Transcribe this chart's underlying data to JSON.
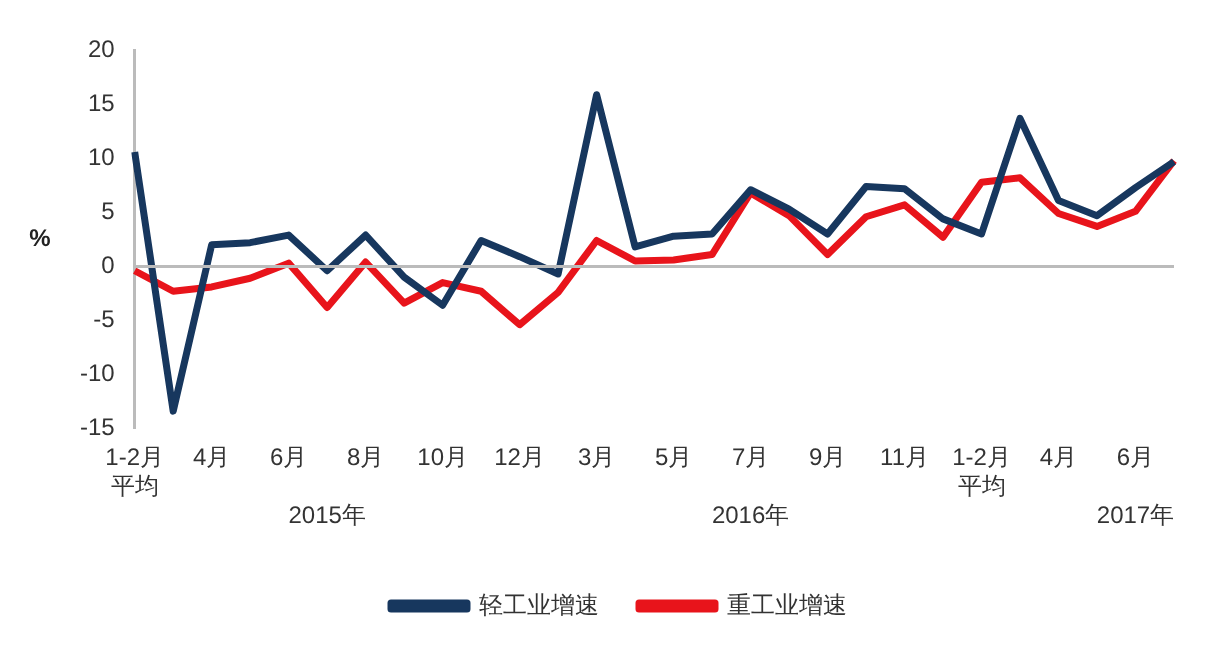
{
  "chart_data": {
    "type": "line",
    "ylabel": "%",
    "categories": [
      "1-2月平均",
      null,
      "4月",
      null,
      "6月",
      null,
      "8月",
      null,
      "10月",
      null,
      "12月",
      null,
      "3月",
      null,
      "5月",
      null,
      "7月",
      null,
      "9月",
      null,
      "11月",
      null,
      "1-2月平均",
      null,
      "4月",
      null,
      "6月",
      null
    ],
    "annotations": [
      "2015年",
      "2016年",
      "2017年"
    ],
    "ref_lines": [
      {
        "axis": "y",
        "value": 0,
        "color": "#bbbbbb"
      }
    ],
    "series": [
      {
        "name": "轻工业增速",
        "color": "#17375e",
        "values": [
          10.6,
          -13.4,
          2.0,
          2.2,
          2.9,
          -0.4,
          2.9,
          -1.0,
          -3.6,
          2.4,
          0.9,
          -0.7,
          15.9,
          1.8,
          2.8,
          3.0,
          7.1,
          5.3,
          3.0,
          7.4,
          7.2,
          4.4,
          3.0,
          13.7,
          6.1,
          4.7,
          7.3,
          9.7
        ]
      },
      {
        "name": "重工业增速",
        "color": "#e8141b",
        "values": [
          -0.4,
          -2.3,
          -1.9,
          -1.1,
          0.3,
          -3.8,
          0.4,
          -3.4,
          -1.5,
          -2.3,
          -5.4,
          -2.4,
          2.4,
          0.5,
          0.6,
          1.1,
          6.8,
          4.7,
          1.1,
          4.6,
          5.7,
          2.7,
          7.8,
          8.2,
          4.9,
          3.7,
          5.1,
          9.8
        ]
      }
    ],
    "ylim": [
      -15,
      20
    ],
    "yticks": [
      -15,
      -10,
      -5,
      0,
      5,
      10,
      15,
      20
    ],
    "grid": false,
    "legend": "bottom",
    "marker": "none",
    "line_style": "solid"
  }
}
